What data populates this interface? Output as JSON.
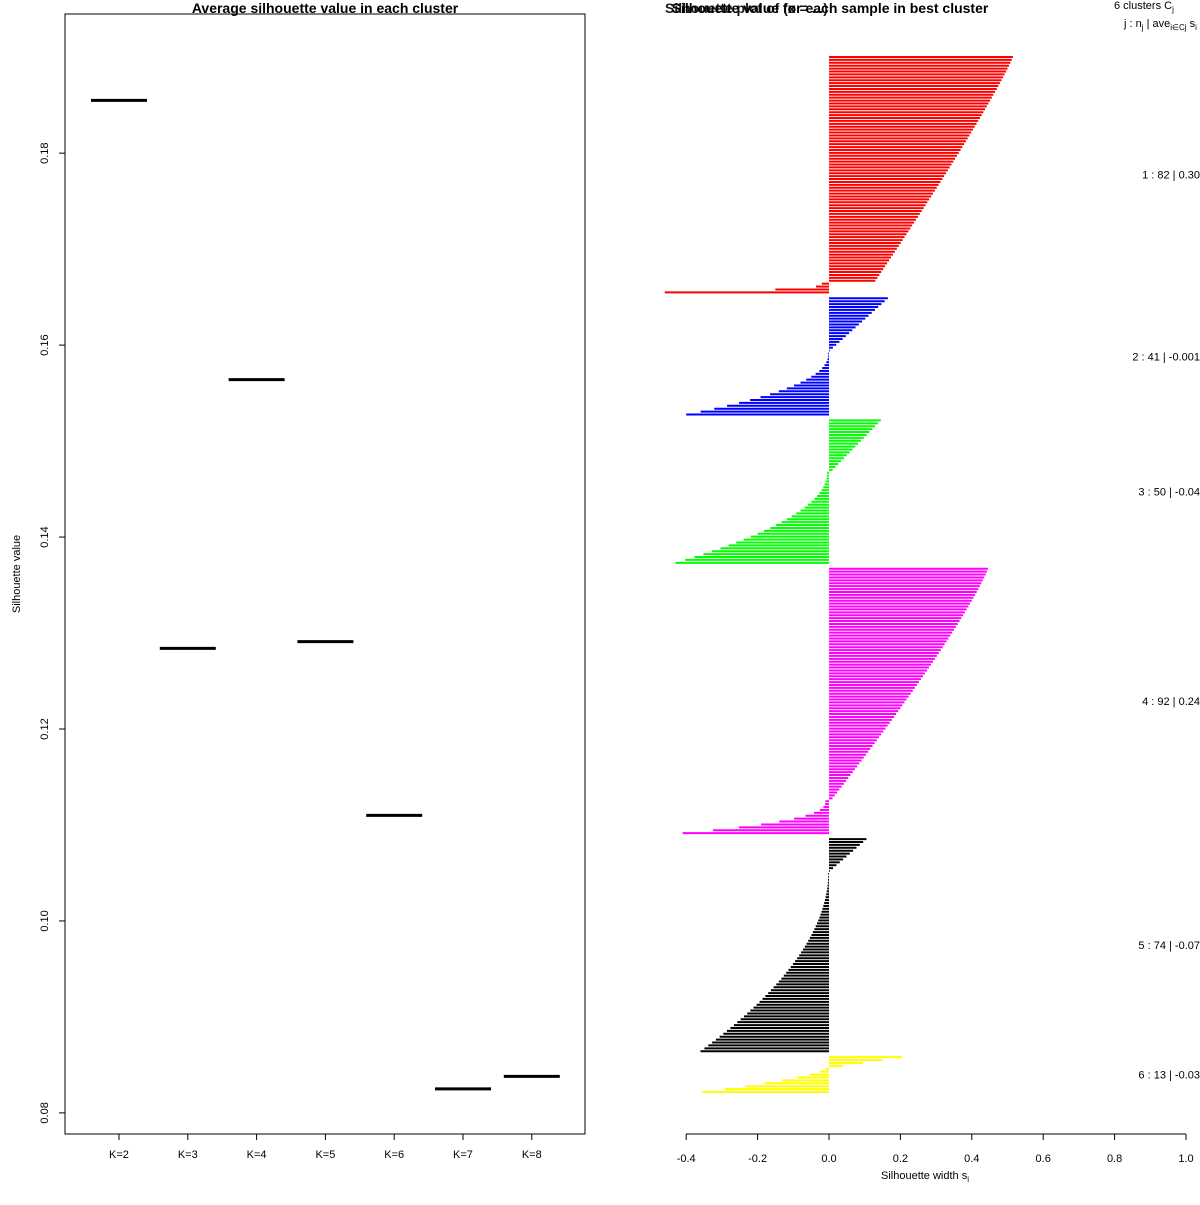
{
  "chart_data": [
    {
      "type": "line",
      "title": "Average silhouette value in each cluster",
      "xlabel": "",
      "ylabel": "Silhouette value",
      "categories": [
        "K=2",
        "K=3",
        "K=4",
        "K=5",
        "K=6",
        "K=7",
        "K=8"
      ],
      "values": [
        0.1855,
        0.1284,
        0.1564,
        0.1291,
        0.111,
        0.0825,
        0.0838
      ],
      "y_ticks": [
        0.08,
        0.1,
        0.12,
        0.14,
        0.16,
        0.18
      ],
      "y_tick_labels": [
        "0.08",
        "0.10",
        "0.12",
        "0.14",
        "0.16",
        "0.18"
      ],
      "ylim": [
        0.0778,
        0.1945
      ],
      "grid": false,
      "mark": "horizontal segment per category"
    },
    {
      "type": "bar",
      "orientation": "horizontal",
      "title": "Silhouette value for each sample in best cluster",
      "title_overlap_text": "Silhouette plot of (x = ...)",
      "xlabel": "Silhouette width s",
      "xlabel_subscript": "i",
      "x_ticks": [
        -0.4,
        -0.2,
        0.0,
        0.2,
        0.4,
        0.6,
        0.8,
        1.0
      ],
      "x_tick_labels": [
        "-0.4",
        "-0.2",
        "0.0",
        "0.2",
        "0.4",
        "0.6",
        "0.8",
        "1.0"
      ],
      "xlim": [
        -0.46,
        1.0
      ],
      "header_line1": "6  clusters  C",
      "header_line1_sub": "j",
      "header_line2_a": "j :  n",
      "header_line2_sub1": "j",
      "header_line2_b": " | ave",
      "header_line2_sub2": "i∈Cj",
      "header_line2_c": "  s",
      "header_line2_sub3": "i",
      "clusters": [
        {
          "id": 1,
          "n": 82,
          "avg": 0.3,
          "label": "1 :  82  |  0.30",
          "color": "#ff0000",
          "pos": {
            "n": 78,
            "max": 0.515,
            "min": 0.13,
            "pow": 1.1
          },
          "neg": {
            "n": 4,
            "max": 0.46,
            "min": 0.02,
            "pow": 3.0
          }
        },
        {
          "id": 2,
          "n": 41,
          "avg": -0.001,
          "label": "2 :  41  |  -0.001",
          "color": "#0000ff",
          "pos": {
            "n": 19,
            "max": 0.165,
            "min": 0.002,
            "pow": 1.0
          },
          "neg": {
            "n": 22,
            "max": 0.4,
            "min": 0.002,
            "pow": 2.2
          }
        },
        {
          "id": 3,
          "n": 50,
          "avg": -0.04,
          "label": "3 :  50  |  -0.04",
          "color": "#00ff00",
          "pos": {
            "n": 18,
            "max": 0.145,
            "min": 0.01,
            "pow": 1.0
          },
          "neg": {
            "n": 32,
            "max": 0.43,
            "min": 0.005,
            "pow": 2.0
          }
        },
        {
          "id": 4,
          "n": 92,
          "avg": 0.24,
          "label": "4 :  92  |  0.24",
          "color": "#ff00ff",
          "pos": {
            "n": 80,
            "max": 0.445,
            "min": 0.01,
            "pow": 1.15
          },
          "neg": {
            "n": 12,
            "max": 0.41,
            "min": 0.01,
            "pow": 2.5
          }
        },
        {
          "id": 5,
          "n": 74,
          "avg": -0.07,
          "label": "5 :  74  |  -0.07",
          "color": "#000000",
          "pos": {
            "n": 12,
            "max": 0.105,
            "min": 0.002,
            "pow": 1.0
          },
          "neg": {
            "n": 62,
            "max": 0.36,
            "min": 0.002,
            "pow": 1.9
          }
        },
        {
          "id": 6,
          "n": 13,
          "avg": -0.03,
          "label": "6 :  13  |  -0.03",
          "color": "#ffff00",
          "pos": {
            "n": 4,
            "max": 0.205,
            "min": 0.04,
            "pow": 1.0
          },
          "neg": {
            "n": 9,
            "max": 0.355,
            "min": 0.01,
            "pow": 1.5
          }
        }
      ]
    }
  ]
}
